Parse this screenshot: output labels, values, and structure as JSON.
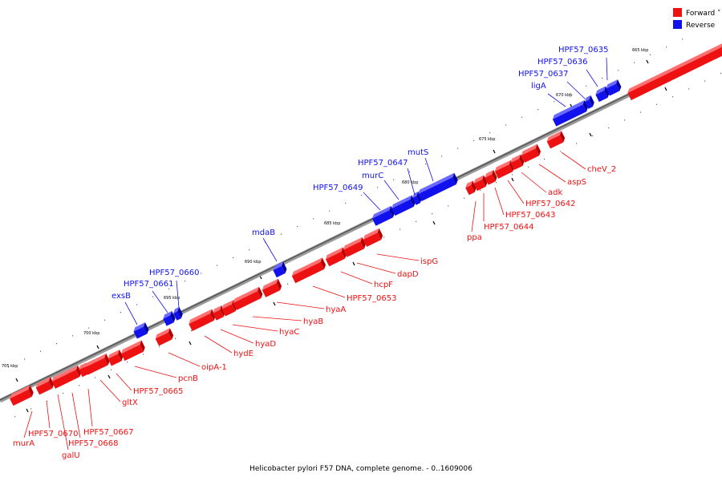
{
  "legend": {
    "forward_label": "Forward",
    "reverse_label": "Reverse",
    "forward_color": "#ee1111",
    "reverse_color": "#1111ee"
  },
  "caption": "Helicobacter pylori F57 DNA, complete genome. - 0..1609006",
  "ruler_labels": [
    "665 kbp",
    "670 kbp",
    "675 kbp",
    "680 kbp",
    "685 kbp",
    "690 kbp",
    "695 kbp",
    "700 kbp",
    "705 kbp"
  ],
  "genes": [
    {
      "name": "HPF57_0635",
      "strand": "reverse"
    },
    {
      "name": "HPF57_0636",
      "strand": "reverse"
    },
    {
      "name": "HPF57_0637",
      "strand": "reverse"
    },
    {
      "name": "ligA",
      "strand": "reverse"
    },
    {
      "name": "cheV_2",
      "strand": "forward"
    },
    {
      "name": "aspS",
      "strand": "forward"
    },
    {
      "name": "adk",
      "strand": "forward"
    },
    {
      "name": "HPF57_0642",
      "strand": "forward"
    },
    {
      "name": "HPF57_0643",
      "strand": "forward"
    },
    {
      "name": "HPF57_0644",
      "strand": "forward"
    },
    {
      "name": "ppa",
      "strand": "forward"
    },
    {
      "name": "mutS",
      "strand": "reverse"
    },
    {
      "name": "HPF57_0647",
      "strand": "reverse"
    },
    {
      "name": "murC",
      "strand": "reverse"
    },
    {
      "name": "HPF57_0649",
      "strand": "reverse"
    },
    {
      "name": "ispG",
      "strand": "forward"
    },
    {
      "name": "dapD",
      "strand": "forward"
    },
    {
      "name": "hcpF",
      "strand": "forward"
    },
    {
      "name": "HPF57_0653",
      "strand": "forward"
    },
    {
      "name": "mdaB",
      "strand": "reverse"
    },
    {
      "name": "hyaA",
      "strand": "forward"
    },
    {
      "name": "hyaB",
      "strand": "forward"
    },
    {
      "name": "hyaC",
      "strand": "forward"
    },
    {
      "name": "hyaD",
      "strand": "forward"
    },
    {
      "name": "hydE",
      "strand": "forward"
    },
    {
      "name": "HPF57_0660",
      "strand": "reverse"
    },
    {
      "name": "HPF57_0661",
      "strand": "reverse"
    },
    {
      "name": "exsB",
      "strand": "reverse"
    },
    {
      "name": "oipA-1",
      "strand": "forward"
    },
    {
      "name": "pcnB",
      "strand": "forward"
    },
    {
      "name": "HPF57_0665",
      "strand": "forward"
    },
    {
      "name": "gltX",
      "strand": "forward"
    },
    {
      "name": "HPF57_0667",
      "strand": "forward"
    },
    {
      "name": "HPF57_0668",
      "strand": "forward"
    },
    {
      "name": "galU",
      "strand": "forward"
    },
    {
      "name": "HPF57_0670",
      "strand": "forward"
    },
    {
      "name": "murA",
      "strand": "forward"
    }
  ]
}
